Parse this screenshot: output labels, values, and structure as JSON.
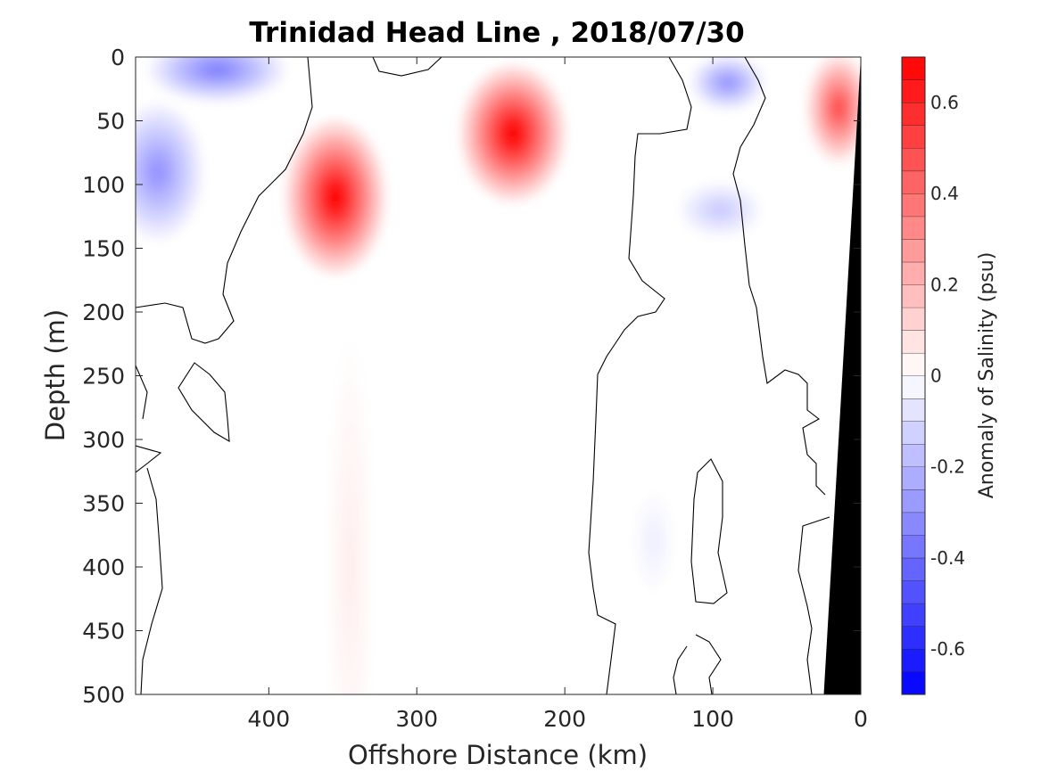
{
  "chart_data": {
    "type": "heatmap",
    "title": "Trinidad Head Line , 2018/07/30",
    "xlabel": "Offshore Distance (km)",
    "ylabel": "Depth (m)",
    "colorbar_label": "Anomaly of Salinity (psu)",
    "xlim": [
      490,
      0
    ],
    "ylim": [
      0,
      500
    ],
    "x_reversed": true,
    "y_reversed": true,
    "x_ticks": [
      400,
      300,
      200,
      100,
      0
    ],
    "x_tick_labels": [
      "400",
      "300",
      "200",
      "100",
      "0"
    ],
    "y_ticks": [
      0,
      50,
      100,
      150,
      200,
      250,
      300,
      350,
      400,
      450,
      500
    ],
    "y_tick_labels": [
      "0",
      "50",
      "100",
      "150",
      "200",
      "250",
      "300",
      "350",
      "400",
      "450",
      "500"
    ],
    "colorbar": {
      "range": [
        -0.7,
        0.7
      ],
      "levels": 28,
      "ticks": [
        0.6,
        0.4,
        0.2,
        0,
        -0.2,
        -0.4,
        -0.6
      ],
      "tick_labels": [
        "0.6",
        "0.4",
        "0.2",
        "0",
        "-0.2",
        "-0.4",
        "-0.6"
      ],
      "colormap": "blue-white-red",
      "positive_color": "#ff0000",
      "negative_color": "#0000ff",
      "neutral_color": "#ffffff"
    },
    "features": [
      {
        "name": "positive core",
        "x_km": 235,
        "depth_m": 60,
        "anomaly": 0.7
      },
      {
        "name": "positive core",
        "x_km": 355,
        "depth_m": 110,
        "anomaly": 0.7
      },
      {
        "name": "positive core",
        "x_km": 15,
        "depth_m": 40,
        "anomaly": 0.5
      },
      {
        "name": "negative core",
        "x_km": 435,
        "depth_m": 10,
        "anomaly": -0.35
      },
      {
        "name": "negative core",
        "x_km": 475,
        "depth_m": 90,
        "anomaly": -0.3
      },
      {
        "name": "negative core",
        "x_km": 90,
        "depth_m": 20,
        "anomaly": -0.3
      },
      {
        "name": "negative core",
        "x_km": 95,
        "depth_m": 120,
        "anomaly": -0.15
      },
      {
        "name": "weak positive band",
        "x_km": 345,
        "depth_m": 400,
        "anomaly": 0.05
      },
      {
        "name": "weak negative patch",
        "x_km": 140,
        "depth_m": 380,
        "anomaly": -0.05
      }
    ],
    "bathymetry": {
      "color": "#000000",
      "points_km_m": [
        [
          0,
          0
        ],
        [
          0,
          500
        ],
        [
          25,
          500
        ]
      ]
    },
    "zero_contour_color": "#000000",
    "grid": false
  }
}
